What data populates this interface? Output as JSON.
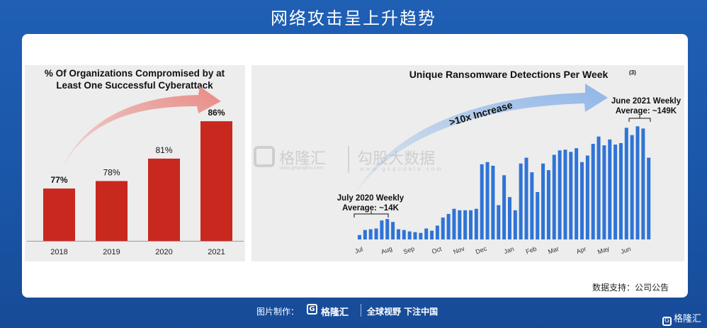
{
  "page": {
    "title": "网络攻击呈上升趋势",
    "source": "数据支持：公司公告",
    "footer_credit": "图片制作：",
    "footer_logo_letter": "G",
    "footer_brand": "格隆汇",
    "footer_slogan": "全球视野 下注中国",
    "corner_logo_letter": "G",
    "corner_brand": "格隆汇"
  },
  "watermark": {
    "brand": "格隆汇",
    "url": "www.gelonghui.com",
    "brand2": "勾股大数据",
    "url2": "www.gogudata.com"
  },
  "colors": {
    "background": "#1f5fb4",
    "bar_red": "#c9281f",
    "bar_blue": "#2f74d6",
    "arrow_red": "#e98a84",
    "arrow_blue": "#8fb6e8",
    "panel_gray": "#ededed"
  },
  "chart_data": [
    {
      "type": "bar",
      "title_lines": [
        "% Of Organizations Compromised by at",
        "Least One Successful Cyberattack"
      ],
      "categories": [
        "2018",
        "2019",
        "2020",
        "2021"
      ],
      "values": [
        77,
        78,
        81,
        86
      ],
      "labels": [
        "77%",
        "78%",
        "81%",
        "86%"
      ],
      "ylim": [
        70,
        88
      ],
      "annotation": "upward red arrow",
      "grid": false
    },
    {
      "type": "bar",
      "title": "Unique Ransomware Detections Per Week",
      "title_note": "(3)",
      "x_tick_labels": [
        "Jul",
        "Aug",
        "Sep",
        "Oct",
        "Nov",
        "Dec",
        "Jan",
        "Feb",
        "Mar",
        "Apr",
        "May",
        "Jun"
      ],
      "x_tick_positions": [
        0,
        5,
        9,
        14,
        18,
        22,
        27,
        31,
        35,
        40,
        44,
        48
      ],
      "values": [
        6,
        13,
        14,
        15,
        26,
        28,
        24,
        14,
        13,
        11,
        10,
        9,
        15,
        12,
        19,
        30,
        35,
        42,
        40,
        40,
        40,
        42,
        103,
        106,
        101,
        47,
        88,
        58,
        40,
        104,
        112,
        92,
        65,
        104,
        95,
        116,
        122,
        123,
        120,
        125,
        106,
        115,
        131,
        141,
        129,
        137,
        130,
        132,
        153,
        143,
        155,
        152,
        112
      ],
      "ylim": [
        0,
        165
      ],
      "annotations": [
        {
          "lines": [
            "July 2020 Weekly",
            "Average: ~14K"
          ]
        },
        {
          "lines": [
            "June 2021 Weekly",
            "Average: ~149K"
          ]
        },
        {
          "lines": [
            ">10x Increase"
          ]
        }
      ],
      "grid": false
    }
  ]
}
